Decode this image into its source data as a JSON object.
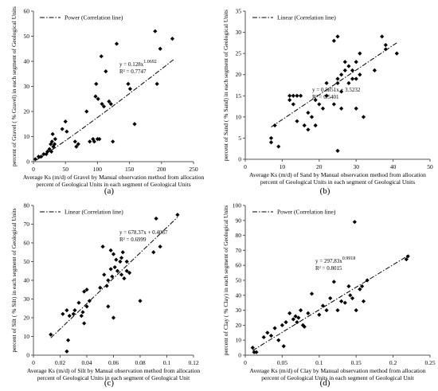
{
  "chart_data": [
    {
      "type": "scatter",
      "panel_label": "(a)",
      "xlabel": "Average Ks (m/d) of Gravel by Manual observation method from allocation\npercent of Geological Units in each segment of Geological Units",
      "ylabel": "percent of Gravel ( % Gravel) in each segment of Geological Units",
      "xlim": [
        0,
        250
      ],
      "ylim": [
        0,
        60
      ],
      "xticks": [
        0,
        50,
        100,
        150,
        200,
        250
      ],
      "yticks": [
        0,
        10,
        20,
        30,
        40,
        50,
        60
      ],
      "legend": "Power (Correlation line)",
      "legend_position": "top-left",
      "equation": "y = 0.128x^1.0692",
      "r2": "R² = 0.7747",
      "trend": {
        "kind": "power",
        "a": 0.128,
        "b": 1.0692,
        "x_from": 5,
        "x_to": 220
      },
      "points": [
        [
          3,
          1
        ],
        [
          8,
          2
        ],
        [
          12,
          2
        ],
        [
          16,
          3
        ],
        [
          20,
          3
        ],
        [
          22,
          4
        ],
        [
          25,
          5
        ],
        [
          27,
          7
        ],
        [
          28,
          4
        ],
        [
          29,
          8
        ],
        [
          31,
          6
        ],
        [
          33,
          7
        ],
        [
          34,
          9
        ],
        [
          30,
          11
        ],
        [
          45,
          13
        ],
        [
          50,
          16
        ],
        [
          52,
          12
        ],
        [
          65,
          8
        ],
        [
          67,
          6
        ],
        [
          70,
          7
        ],
        [
          83,
          20
        ],
        [
          88,
          8
        ],
        [
          93,
          9
        ],
        [
          95,
          8
        ],
        [
          97,
          26
        ],
        [
          98,
          31
        ],
        [
          100,
          9
        ],
        [
          101,
          25
        ],
        [
          103,
          9
        ],
        [
          106,
          42
        ],
        [
          107,
          23
        ],
        [
          110,
          22
        ],
        [
          113,
          36
        ],
        [
          118,
          24
        ],
        [
          121,
          23
        ],
        [
          124,
          8
        ],
        [
          130,
          47
        ],
        [
          148,
          31
        ],
        [
          151,
          29
        ],
        [
          158,
          15
        ],
        [
          190,
          52
        ],
        [
          193,
          31
        ],
        [
          198,
          45
        ],
        [
          217,
          49
        ]
      ]
    },
    {
      "type": "scatter",
      "panel_label": "(b)",
      "xlabel": "Average Ks (m/d) of Sand by Manual observation method from allocation\npercent of Geological Units in each segment of Geological Units",
      "ylabel": "percent of Sand ( % Sand) in each segment of Geological Units",
      "xlim": [
        0,
        50
      ],
      "ylim": [
        0,
        35
      ],
      "xticks": [
        0,
        10,
        20,
        30,
        40,
        50
      ],
      "yticks": [
        0,
        5,
        10,
        15,
        20,
        25,
        30,
        35
      ],
      "legend": "Linear (Correlation line)",
      "legend_position": "top-left",
      "equation": "y = 0.5851x + 3.5232",
      "r2": "R² = 0.5401",
      "trend": {
        "kind": "linear",
        "a": 0.5851,
        "b": 3.5232,
        "x_from": 7,
        "x_to": 41
      },
      "points": [
        [
          7,
          4
        ],
        [
          7,
          5
        ],
        [
          8,
          8
        ],
        [
          9,
          3
        ],
        [
          12,
          15
        ],
        [
          12,
          14
        ],
        [
          13,
          13
        ],
        [
          13,
          15
        ],
        [
          14,
          15
        ],
        [
          14,
          9
        ],
        [
          15,
          15
        ],
        [
          16,
          8
        ],
        [
          17,
          11
        ],
        [
          17,
          7
        ],
        [
          18,
          10
        ],
        [
          19,
          14
        ],
        [
          19,
          8
        ],
        [
          20,
          13
        ],
        [
          21,
          12
        ],
        [
          22,
          15
        ],
        [
          22,
          18
        ],
        [
          24,
          13
        ],
        [
          24,
          28
        ],
        [
          25,
          19
        ],
        [
          25,
          18
        ],
        [
          26,
          20
        ],
        [
          26,
          16
        ],
        [
          27,
          21
        ],
        [
          27,
          23
        ],
        [
          28,
          18
        ],
        [
          28,
          22
        ],
        [
          29,
          21
        ],
        [
          29,
          19
        ],
        [
          30,
          23
        ],
        [
          30,
          19
        ],
        [
          31,
          20
        ],
        [
          31,
          25
        ],
        [
          32,
          10
        ],
        [
          35,
          21
        ],
        [
          37,
          29
        ],
        [
          38,
          27
        ],
        [
          38,
          26
        ],
        [
          41,
          25
        ],
        [
          25,
          2
        ],
        [
          25,
          29
        ],
        [
          30,
          12
        ],
        [
          26,
          12
        ]
      ]
    },
    {
      "type": "scatter",
      "panel_label": "(c)",
      "xlabel": "Average Ks (m/d) of Silt by Manual observation method from allocation\npercent of Geological Units in each segment of Geological Unit",
      "ylabel": "percent of Silt ( % Silt) in each segment of Geological Units",
      "xlim": [
        0,
        0.12
      ],
      "ylim": [
        0,
        80
      ],
      "xticks": [
        0,
        0.02,
        0.04,
        0.06,
        0.08,
        0.1,
        0.12
      ],
      "yticks": [
        0,
        10,
        20,
        30,
        40,
        50,
        60,
        70,
        80
      ],
      "legend": "Linear (Correlation line)",
      "legend_position": "top-left",
      "equation": "y = 678.37x + 0.4087",
      "r2": "R² = 0.6999",
      "trend": {
        "kind": "linear",
        "a": 678.37,
        "b": 0.4087,
        "x_from": 0.013,
        "x_to": 0.108
      },
      "points": [
        [
          0.013,
          11
        ],
        [
          0.022,
          22
        ],
        [
          0.025,
          24
        ],
        [
          0.026,
          8
        ],
        [
          0.027,
          21
        ],
        [
          0.025,
          2
        ],
        [
          0.03,
          22
        ],
        [
          0.031,
          24
        ],
        [
          0.034,
          28
        ],
        [
          0.036,
          21
        ],
        [
          0.037,
          23
        ],
        [
          0.038,
          17
        ],
        [
          0.038,
          34
        ],
        [
          0.04,
          26
        ],
        [
          0.04,
          35
        ],
        [
          0.042,
          29
        ],
        [
          0.05,
          36
        ],
        [
          0.052,
          58
        ],
        [
          0.053,
          43
        ],
        [
          0.055,
          37
        ],
        [
          0.056,
          40
        ],
        [
          0.056,
          26
        ],
        [
          0.058,
          46
        ],
        [
          0.058,
          56
        ],
        [
          0.059,
          42
        ],
        [
          0.06,
          54
        ],
        [
          0.06,
          20
        ],
        [
          0.061,
          47
        ],
        [
          0.062,
          51
        ],
        [
          0.063,
          45
        ],
        [
          0.065,
          50
        ],
        [
          0.066,
          52
        ],
        [
          0.066,
          43
        ],
        [
          0.067,
          55
        ],
        [
          0.068,
          41
        ],
        [
          0.07,
          50
        ],
        [
          0.07,
          45
        ],
        [
          0.072,
          44
        ],
        [
          0.08,
          29
        ],
        [
          0.09,
          55
        ],
        [
          0.092,
          73
        ],
        [
          0.095,
          58
        ],
        [
          0.108,
          75
        ]
      ]
    },
    {
      "type": "scatter",
      "panel_label": "(d)",
      "xlabel": "Average Ks (m/d) of Clay by Manual observation method from allocation\npercent of Geological Units in each segment of Geological Unit",
      "ylabel": "percent of Clay ( % Clay) in each segment of Geological Units",
      "xlim": [
        0,
        0.25
      ],
      "ylim": [
        0,
        100
      ],
      "xticks": [
        0,
        0.05,
        0.1,
        0.15,
        0.2,
        0.25
      ],
      "yticks": [
        0,
        10,
        20,
        30,
        40,
        50,
        60,
        70,
        80,
        90,
        100
      ],
      "legend": "Power (Correlation line)",
      "legend_position": "top-left",
      "equation": "y = 297.83x^0.9918",
      "r2": "R² = 0.8015",
      "trend": {
        "kind": "power",
        "a": 297.83,
        "b": 0.9918,
        "x_from": 0.01,
        "x_to": 0.222
      },
      "points": [
        [
          0.01,
          5
        ],
        [
          0.012,
          2
        ],
        [
          0.015,
          2
        ],
        [
          0.025,
          12
        ],
        [
          0.03,
          15
        ],
        [
          0.035,
          13
        ],
        [
          0.04,
          18
        ],
        [
          0.045,
          10
        ],
        [
          0.05,
          20
        ],
        [
          0.052,
          6
        ],
        [
          0.055,
          22
        ],
        [
          0.06,
          28
        ],
        [
          0.065,
          24
        ],
        [
          0.068,
          26
        ],
        [
          0.07,
          22
        ],
        [
          0.072,
          25
        ],
        [
          0.075,
          30
        ],
        [
          0.078,
          20
        ],
        [
          0.08,
          19
        ],
        [
          0.085,
          28
        ],
        [
          0.09,
          41
        ],
        [
          0.1,
          27
        ],
        [
          0.105,
          33
        ],
        [
          0.11,
          30
        ],
        [
          0.115,
          38
        ],
        [
          0.12,
          49
        ],
        [
          0.125,
          30
        ],
        [
          0.13,
          36
        ],
        [
          0.135,
          35
        ],
        [
          0.14,
          46
        ],
        [
          0.142,
          40
        ],
        [
          0.145,
          38
        ],
        [
          0.148,
          89
        ],
        [
          0.15,
          30
        ],
        [
          0.155,
          44
        ],
        [
          0.158,
          46
        ],
        [
          0.16,
          36
        ],
        [
          0.165,
          50
        ],
        [
          0.218,
          64
        ],
        [
          0.22,
          66
        ]
      ]
    }
  ]
}
